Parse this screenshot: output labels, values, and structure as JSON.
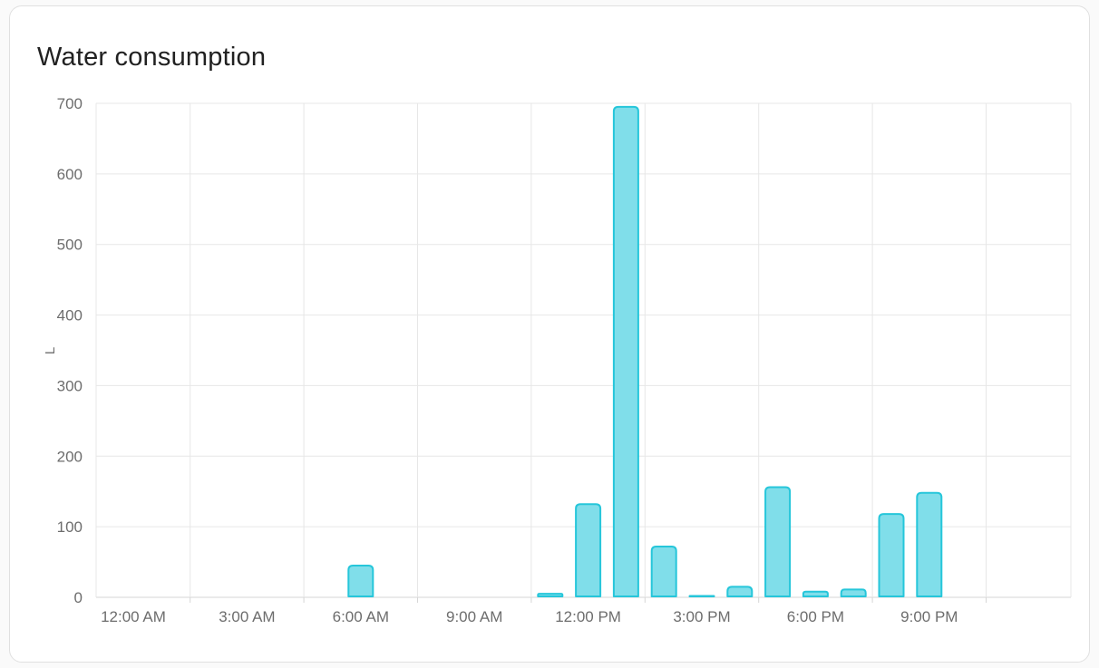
{
  "card": {
    "title": "Water consumption"
  },
  "chart_data": {
    "type": "bar",
    "title": "Water consumption",
    "xlabel": "",
    "ylabel": "L",
    "unit": "L",
    "ylim": [
      0,
      700
    ],
    "y_ticks": [
      0,
      100,
      200,
      300,
      400,
      500,
      600,
      700
    ],
    "x_hours": [
      0,
      1,
      2,
      3,
      4,
      5,
      6,
      7,
      8,
      9,
      10,
      11,
      12,
      13,
      14,
      15,
      16,
      17,
      18,
      19,
      20,
      21,
      22,
      23
    ],
    "values": [
      0,
      0,
      0,
      0,
      0,
      0,
      45,
      0,
      0,
      0,
      0,
      5,
      132,
      695,
      72,
      2,
      15,
      156,
      8,
      11,
      118,
      148,
      0,
      0
    ],
    "x_tick_hours": [
      0,
      3,
      6,
      9,
      12,
      15,
      18,
      21
    ],
    "x_tick_labels": [
      "12:00 AM",
      "3:00 AM",
      "6:00 AM",
      "9:00 AM",
      "12:00 PM",
      "3:00 PM",
      "6:00 PM",
      "9:00 PM"
    ],
    "grid": "on",
    "legend": "off",
    "colors": {
      "bar_fill": "#80deea",
      "bar_stroke": "#26c6da",
      "gridline": "#e7e7e7",
      "axis_line": "#d6d6d6",
      "axis_label": "#6d6d6d",
      "title": "#212121"
    }
  }
}
